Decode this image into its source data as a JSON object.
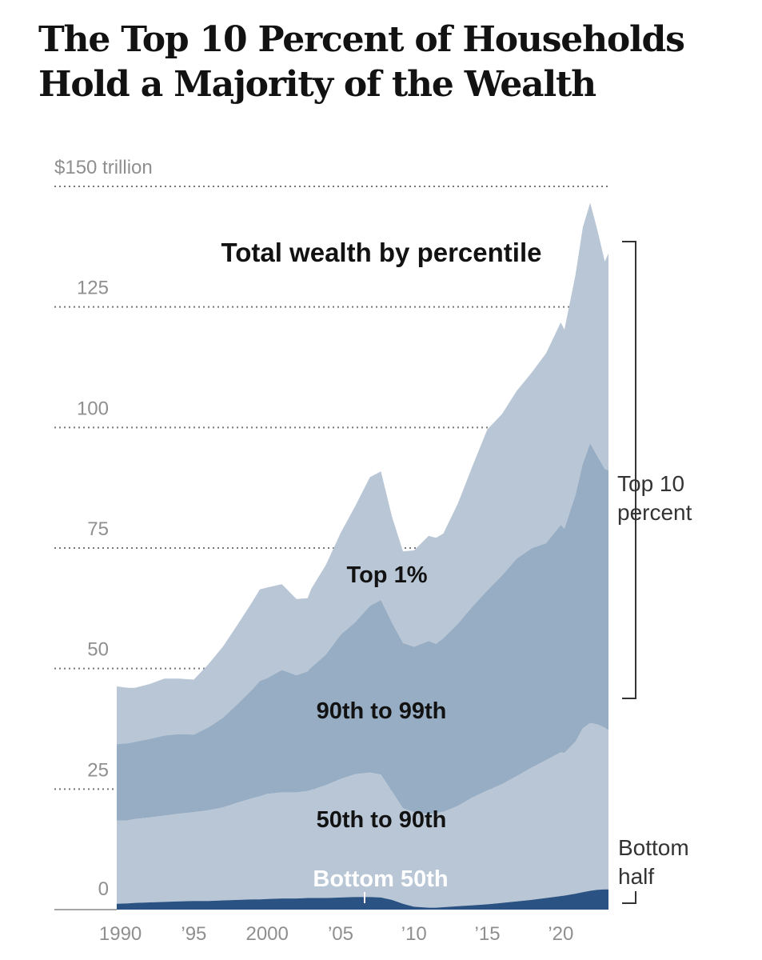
{
  "title": "The Top 10 Percent of Households Hold a Majority of the Wealth",
  "colors": {
    "top1": "#b8c6d5",
    "p90_99": "#97adc3",
    "p50_90": "#b8c6d5",
    "bottom50": "#2a5282",
    "grid": "#777777",
    "tick": "#8f8f8f"
  },
  "chart_data": {
    "type": "area",
    "stacked": true,
    "title": "Total wealth by percentile",
    "yunit": "trillion dollars",
    "ylim": [
      0,
      150
    ],
    "y_ticks": [
      {
        "value": 0,
        "label": "0"
      },
      {
        "value": 25,
        "label": "25"
      },
      {
        "value": 50,
        "label": "50"
      },
      {
        "value": 75,
        "label": "75"
      },
      {
        "value": 100,
        "label": "100"
      },
      {
        "value": 125,
        "label": "125"
      },
      {
        "value": 150,
        "label": "$150 trillion"
      }
    ],
    "xlim": [
      1989.75,
      2023.25
    ],
    "x_ticks": [
      {
        "value": 1990,
        "label": "1990"
      },
      {
        "value": 1995,
        "label": "’95"
      },
      {
        "value": 2000,
        "label": "2000"
      },
      {
        "value": 2005,
        "label": "’05"
      },
      {
        "value": 2010,
        "label": "’10"
      },
      {
        "value": 2015,
        "label": "’15"
      },
      {
        "value": 2020,
        "label": "’20"
      }
    ],
    "x": [
      1989.75,
      1990.5,
      1991,
      1992,
      1993,
      1994,
      1995,
      1996,
      1997,
      1998,
      1999,
      1999.5,
      2000,
      2001,
      2002,
      2002.75,
      2003,
      2004,
      2005,
      2006,
      2007,
      2007.75,
      2008.5,
      2009.25,
      2010,
      2011,
      2011.5,
      2012,
      2013,
      2014,
      2015,
      2016,
      2017,
      2018,
      2019,
      2020,
      2020.25,
      2021,
      2021.5,
      2022,
      2022.5,
      2023,
      2023.25
    ],
    "series": [
      {
        "name": "Bottom 50th",
        "values": [
          1.2,
          1.3,
          1.4,
          1.5,
          1.6,
          1.7,
          1.8,
          1.8,
          1.9,
          2.0,
          2.1,
          2.1,
          2.2,
          2.3,
          2.3,
          2.4,
          2.4,
          2.4,
          2.5,
          2.6,
          2.6,
          2.5,
          2.0,
          1.2,
          0.6,
          0.4,
          0.4,
          0.5,
          0.7,
          0.9,
          1.1,
          1.4,
          1.7,
          2.0,
          2.4,
          2.8,
          2.9,
          3.3,
          3.6,
          3.9,
          4.1,
          4.2,
          4.2
        ]
      },
      {
        "name": "50th to 90th",
        "values": [
          17.3,
          17.2,
          17.4,
          17.6,
          17.9,
          18.2,
          18.4,
          18.8,
          19.3,
          20.2,
          21.0,
          21.4,
          21.8,
          22.0,
          22.0,
          22.2,
          22.4,
          23.4,
          24.6,
          25.5,
          25.8,
          25.5,
          22.5,
          19.8,
          19.6,
          19.4,
          19.6,
          19.8,
          20.8,
          22.4,
          23.6,
          24.6,
          26.0,
          27.4,
          28.6,
          29.8,
          29.6,
          31.5,
          34.0,
          34.8,
          34.3,
          33.5,
          33.0
        ]
      },
      {
        "name": "90th to 99th",
        "values": [
          15.8,
          16.0,
          16.0,
          16.3,
          16.6,
          16.5,
          16.1,
          17.2,
          18.6,
          20.5,
          22.6,
          23.9,
          24.0,
          25.4,
          24.3,
          24.8,
          25.4,
          27.1,
          29.9,
          31.5,
          34.6,
          36.2,
          35.0,
          34.3,
          34.3,
          35.9,
          35.1,
          36.0,
          37.8,
          39.6,
          41.5,
          43.3,
          45.1,
          45.5,
          45.0,
          47.2,
          46.5,
          51.2,
          54.9,
          58.0,
          55.6,
          53.7,
          53.9
        ]
      },
      {
        "name": "Top 1%",
        "values": [
          12.0,
          11.5,
          11.2,
          11.4,
          11.8,
          11.5,
          11.4,
          13.1,
          14.8,
          16.5,
          18.2,
          19.0,
          18.8,
          17.8,
          15.8,
          15.2,
          16.3,
          18.6,
          21.1,
          24.1,
          26.7,
          26.7,
          22.0,
          19.0,
          20.0,
          21.8,
          22.0,
          21.7,
          25.0,
          29.2,
          33.4,
          33.5,
          34.8,
          36.4,
          39.4,
          42.0,
          41.3,
          45.6,
          49.0,
          49.9,
          46.9,
          43.0,
          45.0
        ]
      }
    ],
    "bracket_labels": {
      "top": "Top 10 percent",
      "bottom": "Bottom half"
    }
  }
}
